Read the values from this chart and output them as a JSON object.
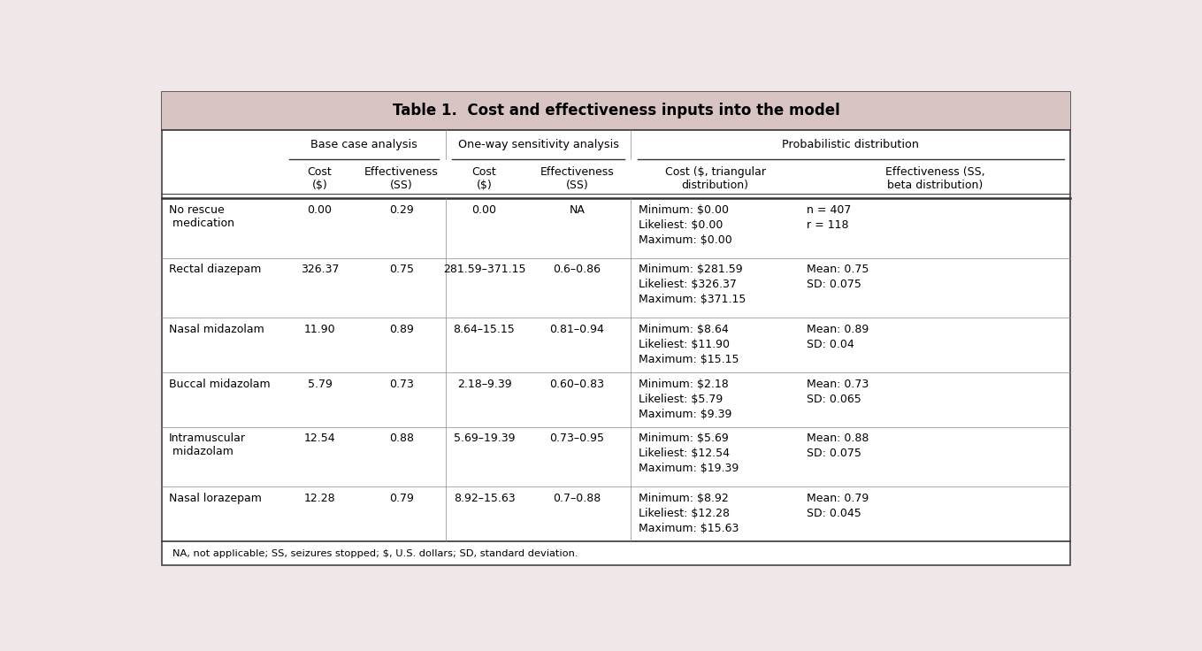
{
  "title": "Table 1.  Cost and effectiveness inputs into the model",
  "title_bg": "#d9c4c4",
  "outer_bg": "#f0e8e8",
  "inner_bg": "#ffffff",
  "footer": "NA, not applicable; SS, seizures stopped; $, U.S. dollars; SD, standard deviation.",
  "col_headers": [
    "Cost\n($)",
    "Effectiveness\n(SS)",
    "Cost\n($)",
    "Effectiveness\n(SS)",
    "Cost ($, triangular\ndistribution)",
    "Effectiveness (SS,\nbeta distribution)"
  ],
  "rows": [
    {
      "label": "No rescue\n medication",
      "cols": [
        "0.00",
        "0.29",
        "0.00",
        "NA",
        "Minimum: $0.00\nLikeliest: $0.00\nMaximum: $0.00",
        "n = 407\nr = 118"
      ]
    },
    {
      "label": "Rectal diazepam",
      "cols": [
        "326.37",
        "0.75",
        "281.59–371.15",
        "0.6–0.86",
        "Minimum: $281.59\nLikeliest: $326.37\nMaximum: $371.15",
        "Mean: 0.75\nSD: 0.075"
      ]
    },
    {
      "label": "Nasal midazolam",
      "cols": [
        "11.90",
        "0.89",
        "8.64–15.15",
        "0.81–0.94",
        "Minimum: $8.64\nLikeliest: $11.90\nMaximum: $15.15",
        "Mean: 0.89\nSD: 0.04"
      ]
    },
    {
      "label": "Buccal midazolam",
      "cols": [
        "5.79",
        "0.73",
        "2.18–9.39",
        "0.60–0.83",
        "Minimum: $2.18\nLikeliest: $5.79\nMaximum: $9.39",
        "Mean: 0.73\nSD: 0.065"
      ]
    },
    {
      "label": "Intramuscular\n midazolam",
      "cols": [
        "12.54",
        "0.88",
        "5.69–19.39",
        "0.73–0.95",
        "Minimum: $5.69\nLikeliest: $12.54\nMaximum: $19.39",
        "Mean: 0.88\nSD: 0.075"
      ]
    },
    {
      "label": "Nasal lorazepam",
      "cols": [
        "12.28",
        "0.79",
        "8.92–15.63",
        "0.7–0.88",
        "Minimum: $8.92\nLikeliest: $12.28\nMaximum: $15.63",
        "Mean: 0.79\nSD: 0.045"
      ]
    }
  ]
}
